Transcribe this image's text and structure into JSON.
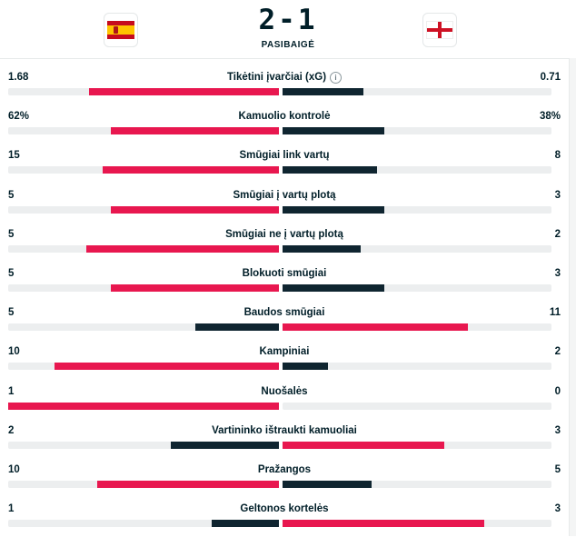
{
  "match": {
    "score": "2-1",
    "status": "PASIBAIGĖ",
    "home_flag_icon": "spain-flag-icon",
    "away_flag_icon": "england-flag-icon"
  },
  "colors": {
    "leader": "#e8174f",
    "trailer": "#0f2530",
    "track": "#eceeef"
  },
  "stats": [
    {
      "label": "Tikėtini įvarčiai (xG)",
      "home": "1.68",
      "away": "0.71",
      "home_frac": 0.7,
      "away_frac": 0.3,
      "info": true
    },
    {
      "label": "Kamuolio kontrolė",
      "home": "62%",
      "away": "38%",
      "home_frac": 0.62,
      "away_frac": 0.38
    },
    {
      "label": "Smūgiai link vartų",
      "home": "15",
      "away": "8",
      "home_frac": 0.65,
      "away_frac": 0.35
    },
    {
      "label": "Smūgiai į vartų plotą",
      "home": "5",
      "away": "3",
      "home_frac": 0.62,
      "away_frac": 0.38
    },
    {
      "label": "Smūgiai ne į vartų plotą",
      "home": "5",
      "away": "2",
      "home_frac": 0.71,
      "away_frac": 0.29
    },
    {
      "label": "Blokuoti smūgiai",
      "home": "5",
      "away": "3",
      "home_frac": 0.62,
      "away_frac": 0.38
    },
    {
      "label": "Baudos smūgiai",
      "home": "5",
      "away": "11",
      "home_frac": 0.31,
      "away_frac": 0.69
    },
    {
      "label": "Kampiniai",
      "home": "10",
      "away": "2",
      "home_frac": 0.83,
      "away_frac": 0.17
    },
    {
      "label": "Nuošalės",
      "home": "1",
      "away": "0",
      "home_frac": 1.0,
      "away_frac": 0.0
    },
    {
      "label": "Vartininko ištraukti kamuoliai",
      "home": "2",
      "away": "3",
      "home_frac": 0.4,
      "away_frac": 0.6
    },
    {
      "label": "Pražangos",
      "home": "10",
      "away": "5",
      "home_frac": 0.67,
      "away_frac": 0.33
    },
    {
      "label": "Geltonos kortelės",
      "home": "1",
      "away": "3",
      "home_frac": 0.25,
      "away_frac": 0.75
    }
  ]
}
